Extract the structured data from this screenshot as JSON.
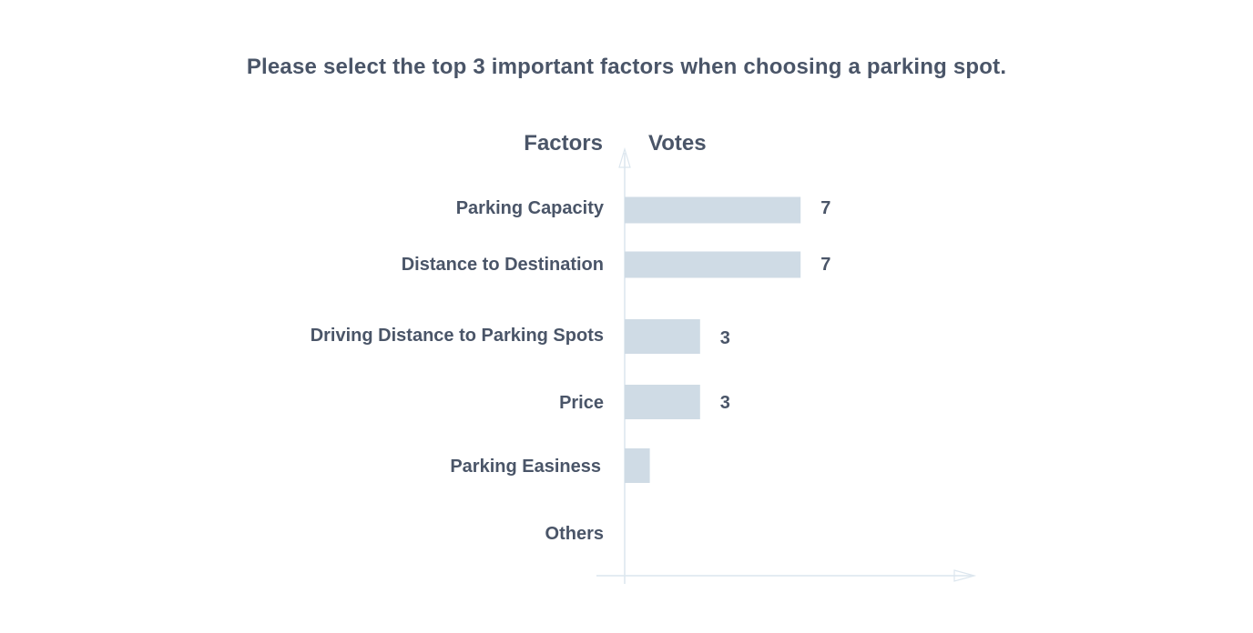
{
  "chart_data": {
    "type": "bar",
    "orientation": "horizontal",
    "title": "Please select the top 3 important factors when choosing a parking spot.",
    "ylabel": "Factors",
    "xlabel": "Votes",
    "categories": [
      "Parking Capacity",
      "Distance to Destination",
      "Driving  Distance to Parking Spots",
      "Price",
      "Parking Easiness",
      "Others"
    ],
    "values": [
      7,
      7,
      3,
      3,
      1,
      0
    ],
    "data_labels": [
      "7",
      "7",
      "3",
      "3",
      "",
      ""
    ],
    "xlim": [
      0,
      14
    ],
    "grid": false,
    "legend": "none"
  },
  "colors": {
    "bar": "#cfdbe5",
    "axis": "#dce6ee",
    "text": "#4a5568"
  }
}
